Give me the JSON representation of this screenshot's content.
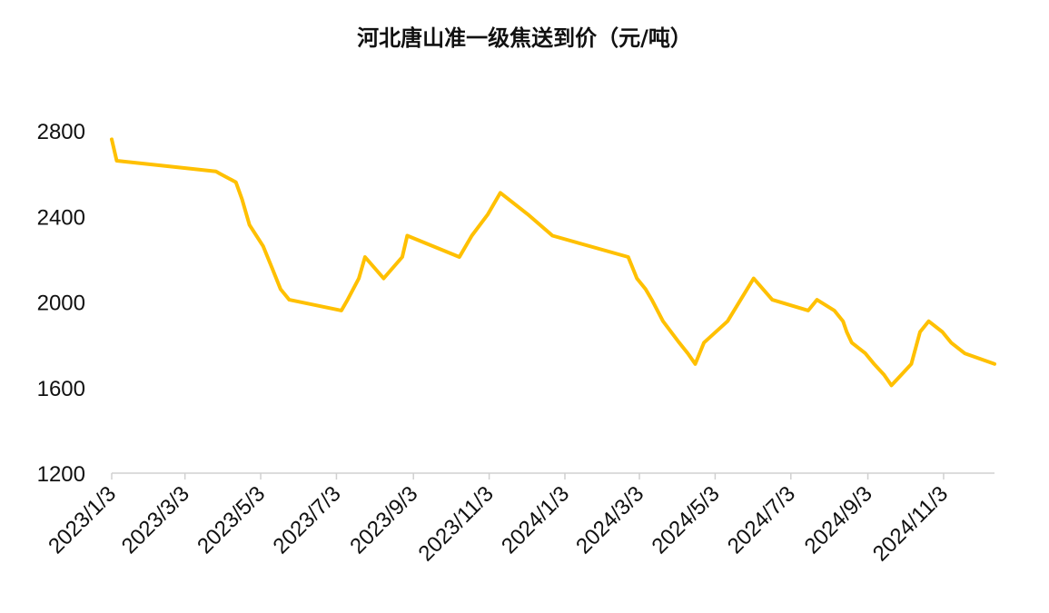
{
  "chart_data": {
    "type": "line",
    "title": "河北唐山准一级焦送到价（元/吨）",
    "xlabel": "",
    "ylabel": "",
    "ylim": [
      1200,
      2800
    ],
    "yticks": [
      "1200",
      "1600",
      "2000",
      "2400",
      "2800"
    ],
    "xticks": [
      "2023/1/3",
      "2023/3/3",
      "2023/5/3",
      "2023/7/3",
      "2023/9/3",
      "2023/11/3",
      "2024/1/3",
      "2024/3/3",
      "2024/5/3",
      "2024/7/3",
      "2024/9/3",
      "2024/11/3"
    ],
    "grid": false,
    "legend": "none",
    "color": "#FFC000",
    "series": [
      {
        "x": [
          "2023-01-03",
          "2023-01-07",
          "2023-03-28",
          "2023-03-31",
          "2023-04-13",
          "2023-04-18",
          "2023-04-24",
          "2023-05-05",
          "2023-05-12",
          "2023-05-19",
          "2023-05-26",
          "2023-07-07",
          "2023-07-12",
          "2023-07-21",
          "2023-07-26",
          "2023-08-10",
          "2023-08-25",
          "2023-08-29",
          "2023-10-10",
          "2023-10-20",
          "2023-11-02",
          "2023-11-12",
          "2023-12-04",
          "2023-12-24",
          "2024-02-23",
          "2024-03-01",
          "2024-03-08",
          "2024-03-13",
          "2024-03-22",
          "2024-04-04",
          "2024-04-11",
          "2024-04-17",
          "2024-04-24",
          "2024-05-13",
          "2024-06-03",
          "2024-06-18",
          "2024-07-17",
          "2024-07-24",
          "2024-08-07",
          "2024-08-14",
          "2024-08-17",
          "2024-08-21",
          "2024-09-01",
          "2024-09-08",
          "2024-09-16",
          "2024-09-22",
          "2024-09-30",
          "2024-10-08",
          "2024-10-15",
          "2024-10-22",
          "2024-11-02",
          "2024-11-09",
          "2024-11-20",
          "2024-12-14"
        ],
        "values": [
          2760,
          2660,
          2610,
          2600,
          2560,
          2480,
          2360,
          2260,
          2160,
          2060,
          2010,
          1960,
          2010,
          2110,
          2210,
          2110,
          2210,
          2310,
          2210,
          2310,
          2410,
          2510,
          2410,
          2310,
          2210,
          2110,
          2060,
          2010,
          1910,
          1810,
          1760,
          1710,
          1810,
          1910,
          2110,
          2010,
          1960,
          2010,
          1960,
          1910,
          1860,
          1810,
          1760,
          1710,
          1660,
          1610,
          1660,
          1710,
          1860,
          1910,
          1860,
          1810,
          1760,
          1710
        ]
      }
    ]
  }
}
